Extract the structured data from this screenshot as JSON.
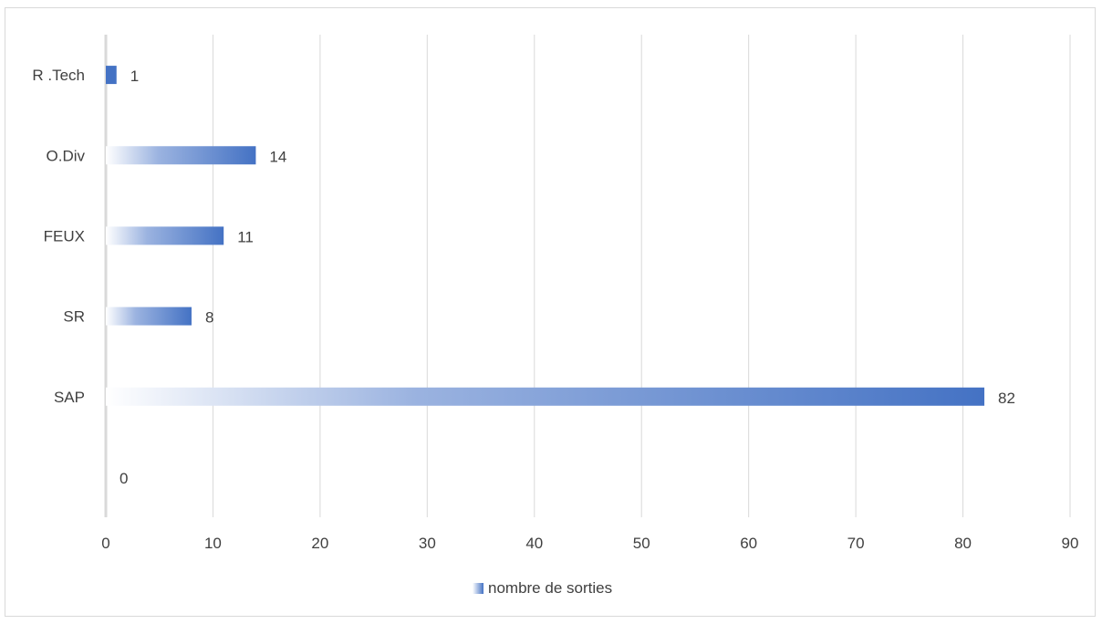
{
  "chart_data": {
    "type": "bar",
    "orientation": "horizontal",
    "title": "",
    "xlabel": "",
    "ylabel": "",
    "categories": [
      "",
      "SAP",
      "SR",
      "FEUX",
      "O.Div",
      "R .Tech"
    ],
    "series": [
      {
        "name": "nombre de sorties",
        "values": [
          0,
          82,
          8,
          11,
          14,
          1
        ],
        "color": "#4472c4"
      }
    ],
    "xlim": [
      0,
      90
    ],
    "xticks": [
      0,
      10,
      20,
      30,
      40,
      50,
      60,
      70,
      80,
      90
    ],
    "xtick_labels": [
      "0",
      "10",
      "20",
      "30",
      "40",
      "50",
      "60",
      "70",
      "80",
      "90"
    ],
    "data_labels": [
      "0",
      "82",
      "8",
      "11",
      "14",
      "1"
    ],
    "grid": "vertical",
    "legend_position": "bottom",
    "bar_fill": "gradient-white-to-blue"
  }
}
